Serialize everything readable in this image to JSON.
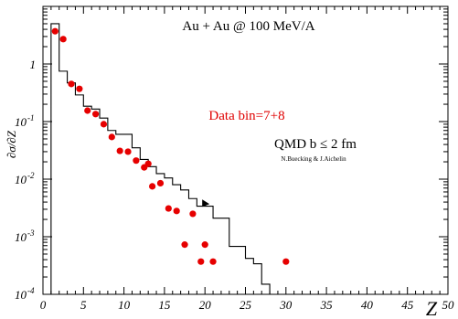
{
  "chart_data": {
    "type": "scatter",
    "title": "Au + Au @ 100 MeV/A",
    "xlabel": "Z",
    "ylabel": "∂σ/∂Z",
    "x_scale": "linear",
    "y_scale": "log",
    "xlim": [
      0,
      50
    ],
    "ylim": [
      0.0001,
      10
    ],
    "x_ticks": [
      {
        "value": 0,
        "label": "0"
      },
      {
        "value": 5,
        "label": "5"
      },
      {
        "value": 10,
        "label": "10"
      },
      {
        "value": 15,
        "label": "15"
      },
      {
        "value": 20,
        "label": "20"
      },
      {
        "value": 25,
        "label": "25"
      },
      {
        "value": 30,
        "label": "30"
      },
      {
        "value": 35,
        "label": "35"
      },
      {
        "value": 40,
        "label": "40"
      },
      {
        "value": 45,
        "label": "45"
      },
      {
        "value": 50,
        "label": "50"
      }
    ],
    "y_ticks": [
      {
        "value": 1,
        "label": "1",
        "exp": ""
      },
      {
        "value": 0.1,
        "label": "10",
        "exp": "-1"
      },
      {
        "value": 0.01,
        "label": "10",
        "exp": "-2"
      },
      {
        "value": 0.001,
        "label": "10",
        "exp": "-3"
      },
      {
        "value": 0.0001,
        "label": "10",
        "exp": "-4"
      }
    ],
    "grid": false,
    "annotations": [
      {
        "text": "Data  bin=7+8",
        "color": "#e00000"
      },
      {
        "text": "QMD b ≤ 2 fm",
        "color": "#000000"
      },
      {
        "text": "N.Buecking & J.Aichelin",
        "color": "#000000"
      }
    ],
    "series": [
      {
        "kind": "points",
        "color": "#e60000",
        "x": [
          1.5,
          2.5,
          3.5,
          4.5,
          5.5,
          6.5,
          7.5,
          8.5,
          9.5,
          10.5,
          11.5,
          12.5,
          13.0,
          13.5,
          14.5,
          15.5,
          16.5,
          17.5,
          18.5,
          19.5,
          20.0,
          21.0,
          30.0
        ],
        "y": [
          3.7,
          2.7,
          0.45,
          0.37,
          0.155,
          0.135,
          0.09,
          0.054,
          0.031,
          0.03,
          0.021,
          0.016,
          0.0185,
          0.0075,
          0.0085,
          0.0031,
          0.0028,
          0.00073,
          0.0025,
          0.00037,
          0.00073,
          0.00037,
          0.00037
        ]
      },
      {
        "kind": "step",
        "color": "#000000",
        "edges": [
          1,
          2,
          3,
          4,
          5,
          6,
          7,
          8,
          9,
          10,
          11,
          12,
          13,
          14,
          15,
          16,
          17,
          18,
          19,
          20,
          21,
          22,
          23,
          24,
          25,
          26,
          27,
          28
        ],
        "values": [
          5.0,
          0.75,
          0.47,
          0.29,
          0.185,
          0.165,
          0.115,
          0.07,
          0.06,
          0.06,
          0.035,
          0.022,
          0.0165,
          0.0125,
          0.0105,
          0.008,
          0.0065,
          0.0046,
          0.0034,
          0.0034,
          0.0021,
          0.0021,
          0.00068,
          0.00068,
          0.00042,
          0.00034,
          0.00015
        ]
      }
    ],
    "arrow_marker": {
      "x": 20.0,
      "y": 0.0037
    }
  }
}
